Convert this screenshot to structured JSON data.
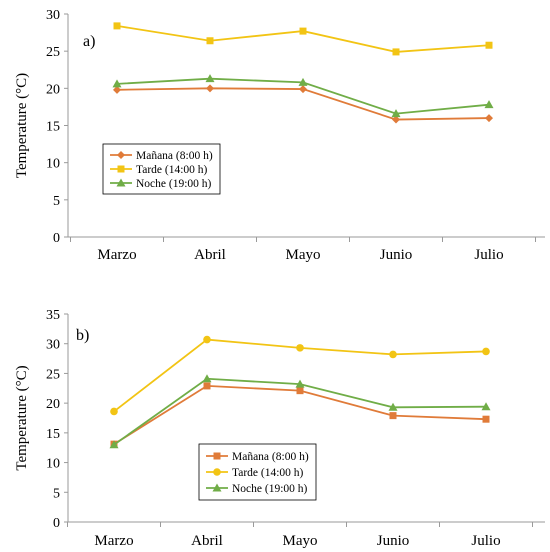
{
  "chart_data": [
    {
      "type": "line",
      "panel_label": "a)",
      "ylabel": "Temperature (°C)",
      "xlabel": "",
      "ylim": [
        0,
        30
      ],
      "yticks": [
        0,
        5,
        10,
        15,
        20,
        25,
        30
      ],
      "categories": [
        "Marzo",
        "Abril",
        "Mayo",
        "Junio",
        "Julio"
      ],
      "grid": false,
      "legend_position": "lower-left",
      "series": [
        {
          "name": "Mañana (8:00 h)",
          "color": "#E07B39",
          "marker": "diamond",
          "values": [
            19.8,
            20.0,
            19.9,
            15.8,
            16.0
          ]
        },
        {
          "name": "Tarde (14:00 h)",
          "color": "#F2C414",
          "marker": "square",
          "values": [
            28.4,
            26.4,
            27.7,
            24.9,
            25.8
          ]
        },
        {
          "name": "Noche (19:00 h)",
          "color": "#70AD47",
          "marker": "triangle",
          "values": [
            20.6,
            21.3,
            20.8,
            16.6,
            17.8
          ]
        }
      ]
    },
    {
      "type": "line",
      "panel_label": "b)",
      "ylabel": "Temperature (°C)",
      "xlabel": "",
      "ylim": [
        0,
        35
      ],
      "yticks": [
        0,
        5,
        10,
        15,
        20,
        25,
        30,
        35
      ],
      "categories": [
        "Marzo",
        "Abril",
        "Mayo",
        "Junio",
        "Julio"
      ],
      "grid": false,
      "legend_position": "lower-center",
      "series": [
        {
          "name": "Mañana (8:00 h)",
          "color": "#E07B39",
          "marker": "square",
          "values": [
            13.1,
            22.9,
            22.1,
            17.9,
            17.3
          ]
        },
        {
          "name": "Tarde (14:00 h)",
          "color": "#F2C414",
          "marker": "circle",
          "values": [
            18.6,
            30.7,
            29.3,
            28.2,
            28.7
          ]
        },
        {
          "name": "Noche (19:00 h)",
          "color": "#70AD47",
          "marker": "triangle",
          "values": [
            13.0,
            24.1,
            23.2,
            19.3,
            19.4
          ]
        }
      ]
    }
  ]
}
